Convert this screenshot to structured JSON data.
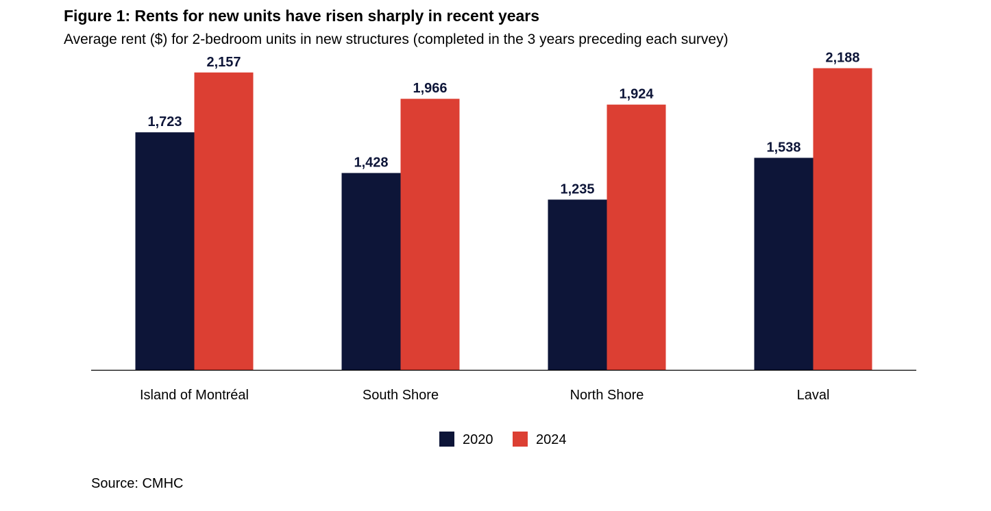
{
  "title": "Figure 1: Rents for new units have risen sharply in recent years",
  "subtitle": "Average rent ($) for 2-bedroom units in new structures (completed in the 3 years preceding each survey)",
  "source": "Source: CMHC",
  "colors": {
    "series_2020": "#0d1538",
    "series_2024": "#dc3f33",
    "label": "#0d1538",
    "axis": "#000000"
  },
  "chart_data": {
    "type": "bar",
    "title": "Figure 1: Rents for new units have risen sharply in recent years",
    "subtitle": "Average rent ($) for 2-bedroom units in new structures (completed in the 3 years preceding each survey)",
    "categories": [
      "Island of Montréal",
      "South Shore",
      "North Shore",
      "Laval"
    ],
    "series": [
      {
        "name": "2020",
        "values": [
          1723,
          1428,
          1235,
          1538
        ],
        "labels": [
          "1,723",
          "1,428",
          "1,235",
          "1,538"
        ]
      },
      {
        "name": "2024",
        "values": [
          2157,
          1966,
          1924,
          2188
        ],
        "labels": [
          "2,157",
          "1,966",
          "1,924",
          "2,188"
        ]
      }
    ],
    "xlabel": "",
    "ylabel": "",
    "ylim": [
      0,
      2400
    ],
    "grid": false,
    "legend": "bottom-center"
  }
}
